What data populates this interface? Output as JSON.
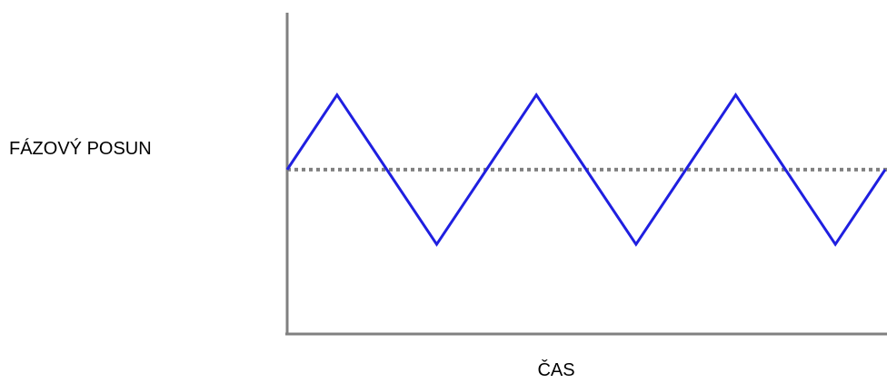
{
  "chart_data": {
    "type": "line",
    "title": "",
    "xlabel": "ČAS",
    "ylabel": "FÁZOVÝ POSUN",
    "x": [
      0,
      1,
      2,
      3,
      4,
      5,
      6,
      7,
      8,
      9,
      10,
      11,
      12
    ],
    "series": [
      {
        "values": [
          0,
          1,
          0,
          -1,
          0,
          1,
          0,
          -1,
          0,
          1,
          0,
          -1,
          0
        ],
        "color": "#1f1fe0",
        "style": "solid"
      }
    ],
    "reference_line": {
      "y": 0,
      "color": "#808080",
      "style": "dotted"
    },
    "xlim": [
      0,
      12
    ],
    "ylim": [
      -2.2,
      2.1
    ],
    "axis_color": "#808080",
    "grid": false,
    "legend": "none"
  }
}
